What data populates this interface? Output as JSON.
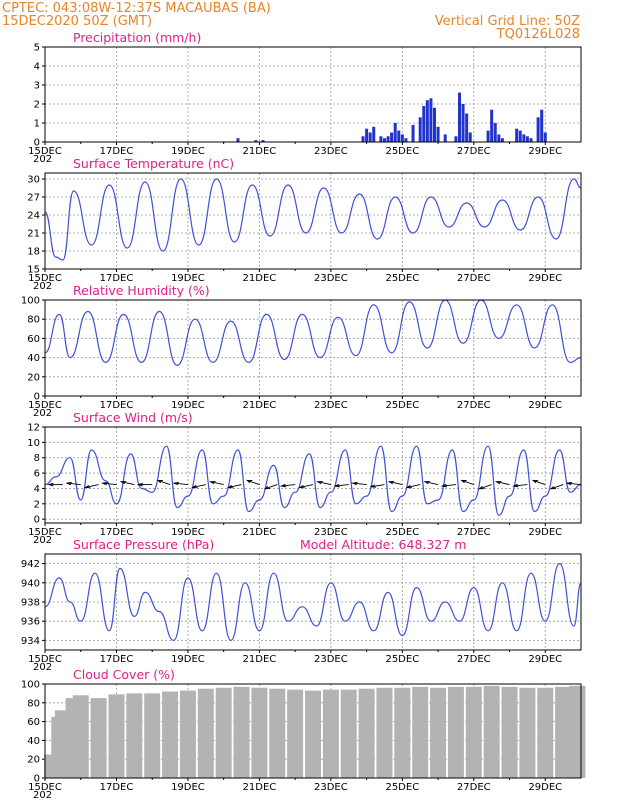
{
  "header": {
    "left_line1": "CPTEC:   043:08W-12:37S   MACAUBAS (BA)",
    "left_line2": "15DEC2020 50Z (GMT)",
    "right_line1": "Vertical Grid Line: 50Z",
    "right_line2": "TQ0126L028"
  },
  "x_axis": {
    "tick_labels": [
      "15DEC",
      "17DEC",
      "19DEC",
      "21DEC",
      "23DEC",
      "25DEC",
      "27DEC",
      "29DEC"
    ],
    "stub_label": "202",
    "range_days": [
      0,
      15
    ]
  },
  "chart_data": [
    {
      "type": "bar",
      "title": "Precipitation (mm/h)",
      "ylim": [
        0,
        5
      ],
      "yticks": [
        "0",
        "1",
        "2",
        "3",
        "4",
        "5"
      ],
      "x_unit": "days since 15DEC",
      "x": [
        5.4,
        5.9,
        6.1,
        8.9,
        9.0,
        9.1,
        9.2,
        9.4,
        9.5,
        9.6,
        9.7,
        9.8,
        9.9,
        10.0,
        10.1,
        10.3,
        10.5,
        10.6,
        10.7,
        10.8,
        10.9,
        11.0,
        11.2,
        11.5,
        11.6,
        11.7,
        11.8,
        11.9,
        12.4,
        12.5,
        12.6,
        12.7,
        12.8,
        13.2,
        13.3,
        13.4,
        13.5,
        13.6,
        13.8,
        13.9,
        14.0
      ],
      "values": [
        0.2,
        0.1,
        0.1,
        0.3,
        0.7,
        0.5,
        0.8,
        0.3,
        0.2,
        0.3,
        0.5,
        1.0,
        0.6,
        0.4,
        0.2,
        0.9,
        1.3,
        1.9,
        2.2,
        2.3,
        1.8,
        0.8,
        0.4,
        0.3,
        2.6,
        2.0,
        1.5,
        0.5,
        0.6,
        1.7,
        1.0,
        0.4,
        0.2,
        0.7,
        0.6,
        0.4,
        0.3,
        0.2,
        1.3,
        1.7,
        0.5
      ]
    },
    {
      "type": "line",
      "title": "Surface Temperature (nC)",
      "ylim": [
        15,
        31
      ],
      "yticks": [
        "15",
        "18",
        "21",
        "24",
        "27",
        "30"
      ],
      "x_unit": "days since 15DEC",
      "x": [
        0.0,
        0.3,
        0.5,
        0.8,
        1.3,
        1.8,
        2.3,
        2.8,
        3.3,
        3.8,
        4.3,
        4.8,
        5.3,
        5.8,
        6.3,
        6.8,
        7.3,
        7.8,
        8.3,
        8.8,
        9.3,
        9.8,
        10.3,
        10.8,
        11.3,
        11.8,
        12.3,
        12.8,
        13.3,
        13.8,
        14.3,
        14.8,
        15.0
      ],
      "values": [
        24.5,
        17.0,
        16.5,
        28.0,
        19.0,
        29.0,
        18.5,
        29.5,
        18.0,
        30.0,
        19.0,
        30.0,
        19.5,
        29.0,
        20.5,
        29.0,
        21.0,
        28.5,
        21.0,
        27.5,
        20.0,
        27.0,
        21.0,
        27.0,
        22.0,
        26.0,
        22.0,
        26.5,
        21.5,
        27.0,
        20.0,
        30.0,
        28.5
      ]
    },
    {
      "type": "line",
      "title": "Relative Humidity (%)",
      "ylim": [
        0,
        100
      ],
      "yticks": [
        "0",
        "20",
        "40",
        "60",
        "80",
        "100"
      ],
      "x_unit": "days since 15DEC",
      "x": [
        0.0,
        0.4,
        0.7,
        1.2,
        1.7,
        2.2,
        2.7,
        3.2,
        3.7,
        4.2,
        4.7,
        5.2,
        5.7,
        6.2,
        6.7,
        7.2,
        7.7,
        8.2,
        8.7,
        9.2,
        9.7,
        10.2,
        10.7,
        11.2,
        11.7,
        12.2,
        12.7,
        13.2,
        13.7,
        14.2,
        14.7,
        15.0
      ],
      "values": [
        45,
        85,
        40,
        88,
        35,
        85,
        35,
        88,
        32,
        80,
        35,
        78,
        35,
        85,
        38,
        85,
        40,
        82,
        42,
        95,
        45,
        98,
        50,
        100,
        55,
        100,
        60,
        95,
        50,
        95,
        35,
        40
      ]
    },
    {
      "type": "line",
      "title": "Surface Wind (m/s)",
      "ylim": [
        -0.5,
        12
      ],
      "yticks": [
        "0",
        "2",
        "4",
        "6",
        "8",
        "10",
        "12"
      ],
      "x_unit": "days since 15DEC",
      "x": [
        0.0,
        0.3,
        0.7,
        1.0,
        1.3,
        1.7,
        2.0,
        2.4,
        2.7,
        3.0,
        3.4,
        3.7,
        4.0,
        4.4,
        4.7,
        5.0,
        5.4,
        5.7,
        6.0,
        6.4,
        6.7,
        7.0,
        7.4,
        7.7,
        8.0,
        8.4,
        8.7,
        9.0,
        9.4,
        9.7,
        10.0,
        10.4,
        10.7,
        11.0,
        11.4,
        11.7,
        12.0,
        12.4,
        12.7,
        13.0,
        13.4,
        13.7,
        14.0,
        14.4,
        14.7,
        15.0
      ],
      "values": [
        4.5,
        5.5,
        8.0,
        2.5,
        9.0,
        5.0,
        2.0,
        8.5,
        4.0,
        3.5,
        9.5,
        1.5,
        3.0,
        9.0,
        2.0,
        3.0,
        9.0,
        1.0,
        2.5,
        7.0,
        1.5,
        3.5,
        8.5,
        1.5,
        3.5,
        9.0,
        2.0,
        3.0,
        9.5,
        1.0,
        3.0,
        9.5,
        2.0,
        2.5,
        9.0,
        1.0,
        2.5,
        9.5,
        0.5,
        3.0,
        9.0,
        1.0,
        3.0,
        9.0,
        3.5,
        4.5
      ],
      "arrows_x": [
        0.5,
        1.0,
        1.5,
        2.0,
        2.5,
        3.0,
        3.5,
        4.0,
        4.5,
        5.0,
        5.5,
        6.0,
        6.5,
        7.0,
        7.5,
        8.0,
        8.5,
        9.0,
        9.5,
        10.0,
        10.5,
        11.0,
        11.5,
        12.0,
        12.5,
        13.0,
        13.5,
        14.0,
        14.5,
        15.0
      ],
      "arrows_dir_deg": [
        180,
        190,
        160,
        190,
        200,
        180,
        210,
        190,
        160,
        200,
        160,
        210,
        150,
        170,
        160,
        200,
        170,
        190,
        165,
        200,
        160,
        200,
        170,
        210,
        150,
        200,
        170,
        210,
        150,
        190
      ]
    },
    {
      "type": "line",
      "title": "Surface Pressure (hPa)",
      "annotation": "Model Altitude: 648.327 m",
      "ylim": [
        933,
        943
      ],
      "yticks": [
        "934",
        "936",
        "938",
        "940",
        "942"
      ],
      "x_unit": "days since 15DEC",
      "x": [
        0.0,
        0.4,
        0.7,
        1.0,
        1.4,
        1.8,
        2.1,
        2.5,
        2.8,
        3.2,
        3.6,
        4.0,
        4.4,
        4.8,
        5.2,
        5.6,
        6.0,
        6.4,
        6.8,
        7.2,
        7.6,
        8.0,
        8.4,
        8.8,
        9.2,
        9.6,
        10.0,
        10.4,
        10.8,
        11.2,
        11.6,
        12.0,
        12.4,
        12.8,
        13.2,
        13.6,
        14.0,
        14.4,
        14.8,
        15.0
      ],
      "values": [
        937.5,
        940.5,
        938.0,
        936.0,
        941.0,
        935.0,
        941.5,
        936.5,
        939.0,
        937.0,
        934.0,
        940.5,
        935.0,
        941.0,
        934.0,
        940.0,
        935.0,
        941.0,
        936.0,
        937.5,
        935.5,
        940.0,
        936.0,
        938.0,
        935.0,
        939.0,
        934.5,
        939.5,
        936.0,
        938.0,
        936.0,
        939.5,
        935.0,
        940.0,
        935.0,
        941.0,
        936.0,
        942.0,
        935.5,
        940.0
      ]
    },
    {
      "type": "bar",
      "title": "Cloud Cover (%)",
      "ylim": [
        0,
        100
      ],
      "yticks": [
        "0",
        "20",
        "40",
        "60",
        "80",
        "100"
      ],
      "x_unit": "days since 15DEC",
      "x": [
        0.2,
        0.4,
        0.5,
        0.6,
        0.8,
        1.0,
        1.5,
        2.0,
        2.5,
        3.0,
        3.5,
        4.0,
        4.5,
        5.0,
        5.5,
        6.0,
        6.5,
        7.0,
        7.5,
        8.0,
        8.5,
        9.0,
        9.5,
        10.0,
        10.5,
        11.0,
        11.5,
        12.0,
        12.5,
        13.0,
        13.5,
        14.0,
        14.5,
        14.9
      ],
      "values": [
        25,
        65,
        72,
        45,
        85,
        88,
        85,
        89,
        90,
        90,
        92,
        93,
        95,
        96,
        97,
        96,
        95,
        94,
        93,
        94,
        94,
        95,
        96,
        96,
        97,
        96,
        97,
        97,
        98,
        97,
        96,
        96,
        97,
        98
      ]
    }
  ]
}
